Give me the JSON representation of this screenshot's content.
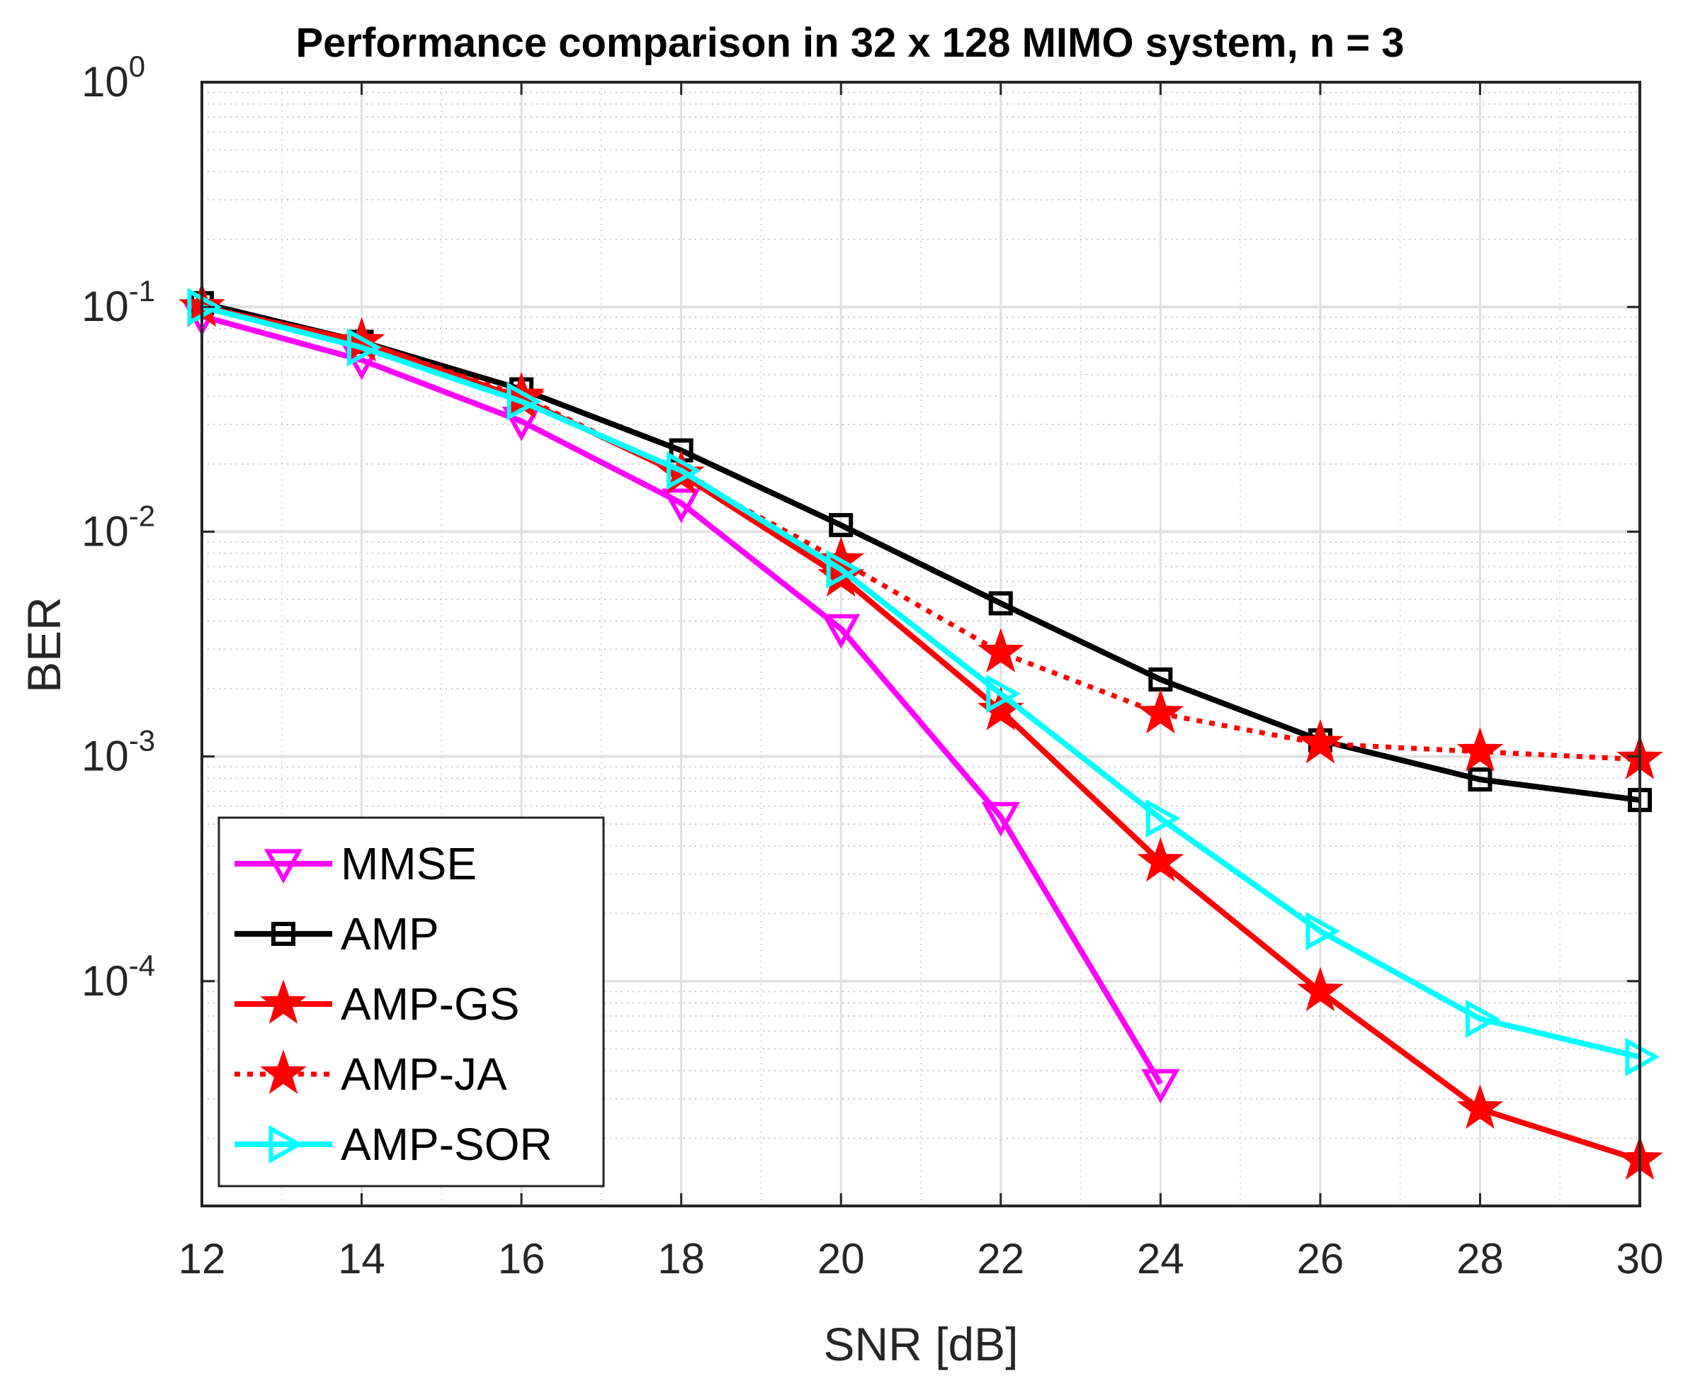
{
  "chart_data": {
    "type": "line",
    "title": "Performance comparison in 32 x 128 MIMO system, n = 3",
    "xlabel": "SNR [dB]",
    "ylabel": "BER",
    "xlim": [
      12,
      30
    ],
    "ylim": [
      1e-05,
      1
    ],
    "yscale": "log",
    "grid": true,
    "legend_position": "bottom-left",
    "x_ticks": [
      "12",
      "14",
      "16",
      "18",
      "20",
      "22",
      "24",
      "26",
      "28",
      "30"
    ],
    "y_ticks": [
      {
        "exp": 0,
        "base": "10",
        "sup": "0"
      },
      {
        "exp": -1,
        "base": "10",
        "sup": "-1"
      },
      {
        "exp": -2,
        "base": "10",
        "sup": "-2"
      },
      {
        "exp": -3,
        "base": "10",
        "sup": "-3"
      },
      {
        "exp": -4,
        "base": "10",
        "sup": "-4"
      }
    ],
    "series": [
      {
        "name": "MMSE",
        "color": "#ff00ff",
        "marker": "triangle-down",
        "dashed": false,
        "x": [
          12,
          14,
          16,
          18,
          20,
          22,
          24
        ],
        "y": [
          0.091,
          0.058,
          0.031,
          0.0134,
          0.0037,
          0.00054,
          3.5e-05
        ]
      },
      {
        "name": "AMP",
        "color": "#000000",
        "marker": "square",
        "dashed": false,
        "x": [
          12,
          14,
          16,
          18,
          20,
          22,
          24,
          26,
          28,
          30
        ],
        "y": [
          0.104,
          0.07,
          0.043,
          0.023,
          0.0107,
          0.0048,
          0.0022,
          0.00118,
          0.00079,
          0.00064
        ]
      },
      {
        "name": "AMP-GS",
        "color": "#ff0000",
        "marker": "star",
        "dashed": false,
        "x": [
          12,
          14,
          16,
          18,
          20,
          22,
          24,
          26,
          28,
          30
        ],
        "y": [
          0.1,
          0.07,
          0.039,
          0.018,
          0.0063,
          0.0016,
          0.00034,
          9e-05,
          2.7e-05,
          1.6e-05
        ]
      },
      {
        "name": "AMP-JA",
        "color": "#ff0000",
        "marker": "star",
        "dashed": true,
        "x": [
          12,
          14,
          16,
          18,
          20,
          22,
          24,
          26,
          28,
          30
        ],
        "y": [
          0.1,
          0.07,
          0.04,
          0.018,
          0.0074,
          0.0029,
          0.00155,
          0.00114,
          0.00105,
          0.00097
        ]
      },
      {
        "name": "AMP-SOR",
        "color": "#00ffff",
        "marker": "triangle-right",
        "dashed": false,
        "x": [
          12,
          14,
          16,
          18,
          20,
          22,
          24,
          26,
          28,
          30
        ],
        "y": [
          0.1,
          0.066,
          0.038,
          0.0187,
          0.0068,
          0.0019,
          0.00053,
          0.000167,
          6.8e-05,
          4.6e-05
        ]
      }
    ]
  }
}
